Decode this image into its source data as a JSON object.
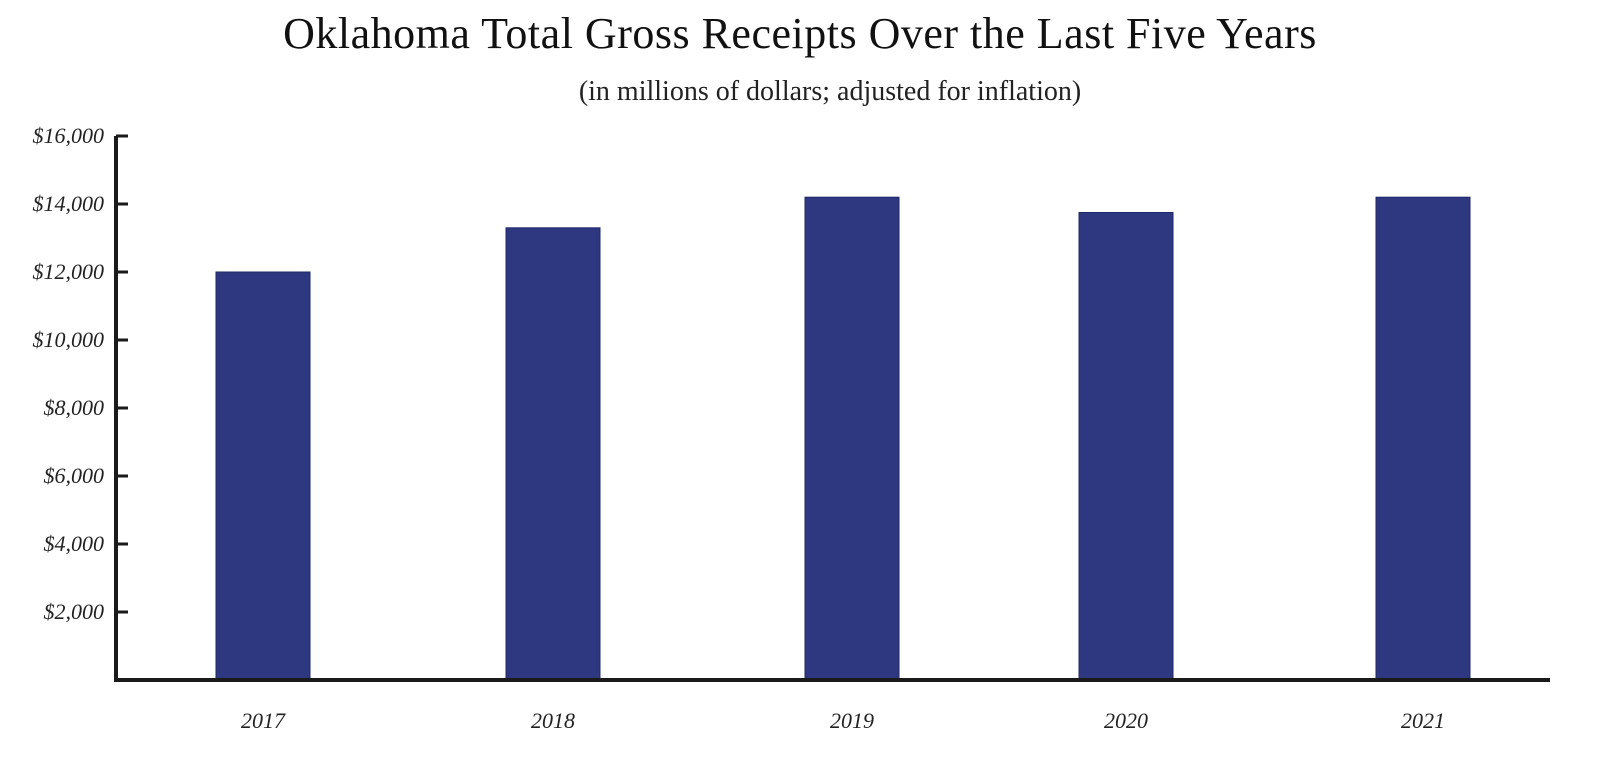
{
  "chart_data": {
    "type": "bar",
    "title": "Oklahoma Total Gross Receipts Over the Last Five Years",
    "subtitle": "(in millions of dollars; adjusted for inflation)",
    "xlabel": "",
    "ylabel": "",
    "categories": [
      "2017",
      "2018",
      "2019",
      "2020",
      "2021"
    ],
    "values": [
      12000,
      13300,
      14200,
      13750,
      14200
    ],
    "ylim": [
      0,
      16000
    ],
    "yticks": [
      2000,
      4000,
      6000,
      8000,
      10000,
      12000,
      14000,
      16000
    ],
    "ytick_labels": [
      "$2,000",
      "$4,000",
      "$6,000",
      "$8,000",
      "$10,000",
      "$12,000",
      "$14,000",
      "$16,000"
    ],
    "grid": false,
    "legend": "none",
    "colors": {
      "bar": "#2e3880",
      "axis": "#1a1a1a"
    }
  }
}
